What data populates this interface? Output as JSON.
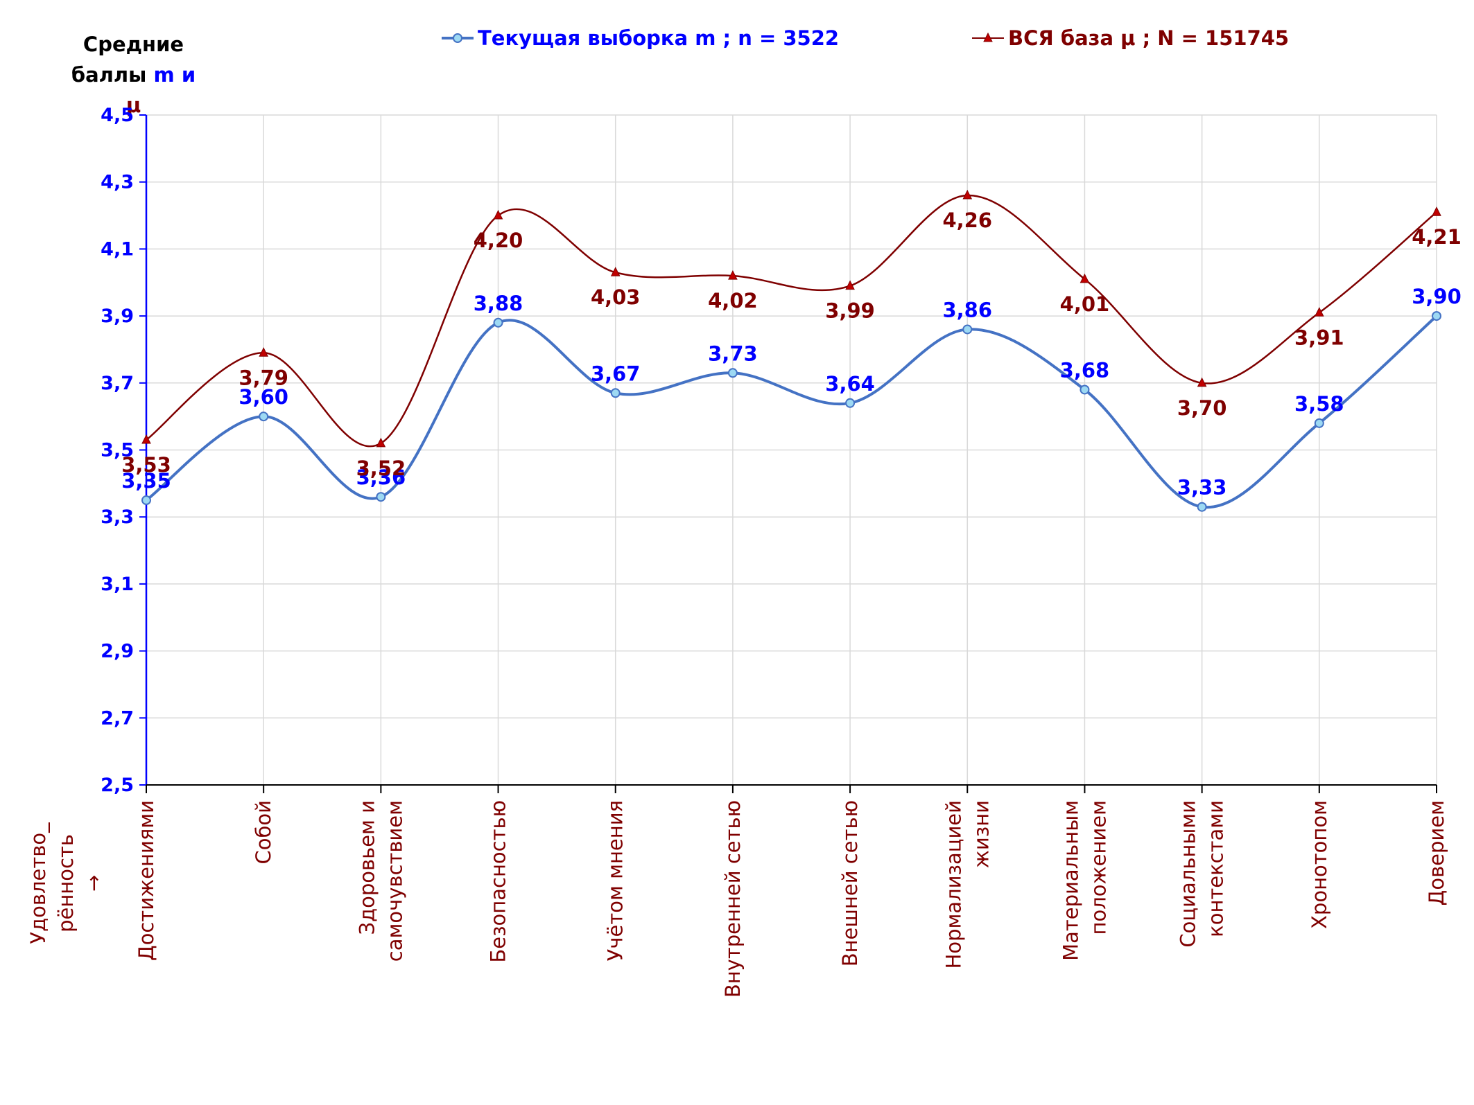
{
  "chart_data": {
    "type": "line",
    "title": "",
    "ylabel_line1": "Средние",
    "ylabel_line2_prefix": "баллы",
    "ylabel_sym1": "m",
    "ylabel_and": "и",
    "ylabel_sym2": "μ",
    "xlabel_side_line1": "Удовлетво_",
    "xlabel_side_line2": "рённость",
    "xlabel_side_arrow": "→",
    "ylim": [
      2.5,
      4.5
    ],
    "yticks": [
      "2,5",
      "2,7",
      "2,9",
      "3,1",
      "3,3",
      "3,5",
      "3,7",
      "3,9",
      "4,1",
      "4,3",
      "4,5"
    ],
    "categories": [
      [
        "Достижениями"
      ],
      [
        "Собой"
      ],
      [
        "Здоровьем и",
        "самочувствием"
      ],
      [
        "Безопасностью"
      ],
      [
        "Учётом мнения"
      ],
      [
        "Внутренней сетью"
      ],
      [
        "Внешней сетью"
      ],
      [
        "Нормализацией",
        "жизни"
      ],
      [
        "Материальным",
        "положением"
      ],
      [
        "Социальными",
        "контекстами"
      ],
      [
        "Хронотопом"
      ],
      [
        "Доверием"
      ]
    ],
    "series": [
      {
        "name": "Текущая выборка m ; n = 3522",
        "color": "#4472c4",
        "label_color": "#0000ff",
        "marker": "circle",
        "values": [
          3.35,
          3.6,
          3.36,
          3.88,
          3.67,
          3.73,
          3.64,
          3.86,
          3.68,
          3.33,
          3.58,
          3.9
        ],
        "labels": [
          "3,35",
          "3,60",
          "3,36",
          "3,88",
          "3,67",
          "3,73",
          "3,64",
          "3,86",
          "3,68",
          "3,33",
          "3,58",
          "3,90"
        ]
      },
      {
        "name": "ВСЯ база μ ; N = 151745",
        "color": "#7f0000",
        "label_color": "#7f0000",
        "marker": "triangle",
        "values": [
          3.53,
          3.79,
          3.52,
          4.2,
          4.03,
          4.02,
          3.99,
          4.26,
          4.01,
          3.7,
          3.91,
          4.21
        ],
        "labels": [
          "3,53",
          "3,79",
          "3,52",
          "4,20",
          "4,03",
          "4,02",
          "3,99",
          "4,26",
          "4,01",
          "3,70",
          "3,91",
          "4,21"
        ]
      }
    ],
    "grid": true,
    "legend_position": "top"
  }
}
